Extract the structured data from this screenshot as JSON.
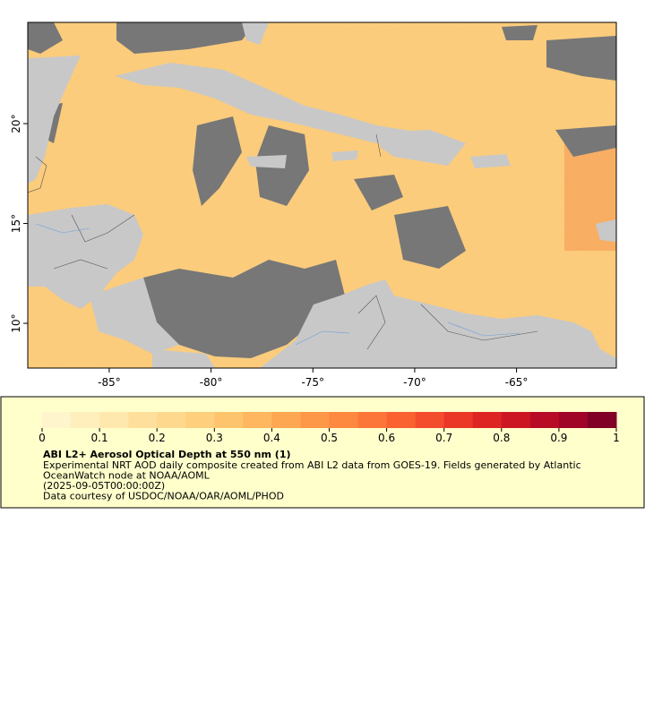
{
  "map": {
    "type": "map",
    "xlim": [
      -89.0,
      -60.1
    ],
    "ylim": [
      7.76,
      25.07
    ],
    "xticks": [
      {
        "value": -85,
        "label": "-85°"
      },
      {
        "value": -80,
        "label": "-80°"
      },
      {
        "value": -75,
        "label": "-75°"
      },
      {
        "value": -70,
        "label": "-70°"
      },
      {
        "value": -65,
        "label": "-65°"
      }
    ],
    "yticks": [
      {
        "value": 10,
        "label": "10°"
      },
      {
        "value": 15,
        "label": "15°"
      },
      {
        "value": 20,
        "label": "20°"
      }
    ],
    "land_color": "#c8c8c8",
    "cloud_color": "#777777"
  },
  "colorbar": {
    "clim": [
      0,
      1
    ],
    "ticks": [
      0,
      0.1,
      0.2,
      0.3,
      0.4,
      0.5,
      0.6,
      0.7,
      0.8,
      0.9,
      1
    ],
    "colors": [
      "#fff5cc",
      "#ffefbd",
      "#ffe8ad",
      "#fee09c",
      "#fed88c",
      "#fecf7c",
      "#fec46d",
      "#feb65f",
      "#fea752",
      "#fd9848",
      "#fd8840",
      "#fc7639",
      "#fa6232",
      "#f44d2d",
      "#ea3728",
      "#de2524",
      "#cc1723",
      "#b80c26",
      "#a00427",
      "#800026"
    ],
    "title": "ABI L2+ Aerosol Optical Depth at 550 nm (1)",
    "lines": [
      "Experimental NRT AOD daily composite created from ABI L2 data from GOES-19. Fields generated by Atlantic",
      "OceanWatch node at NOAA/AOML",
      "(2025-09-05T00:00:00Z)",
      "Data courtesy of USDOC/NOAA/OAR/AOML/PHOD"
    ]
  }
}
